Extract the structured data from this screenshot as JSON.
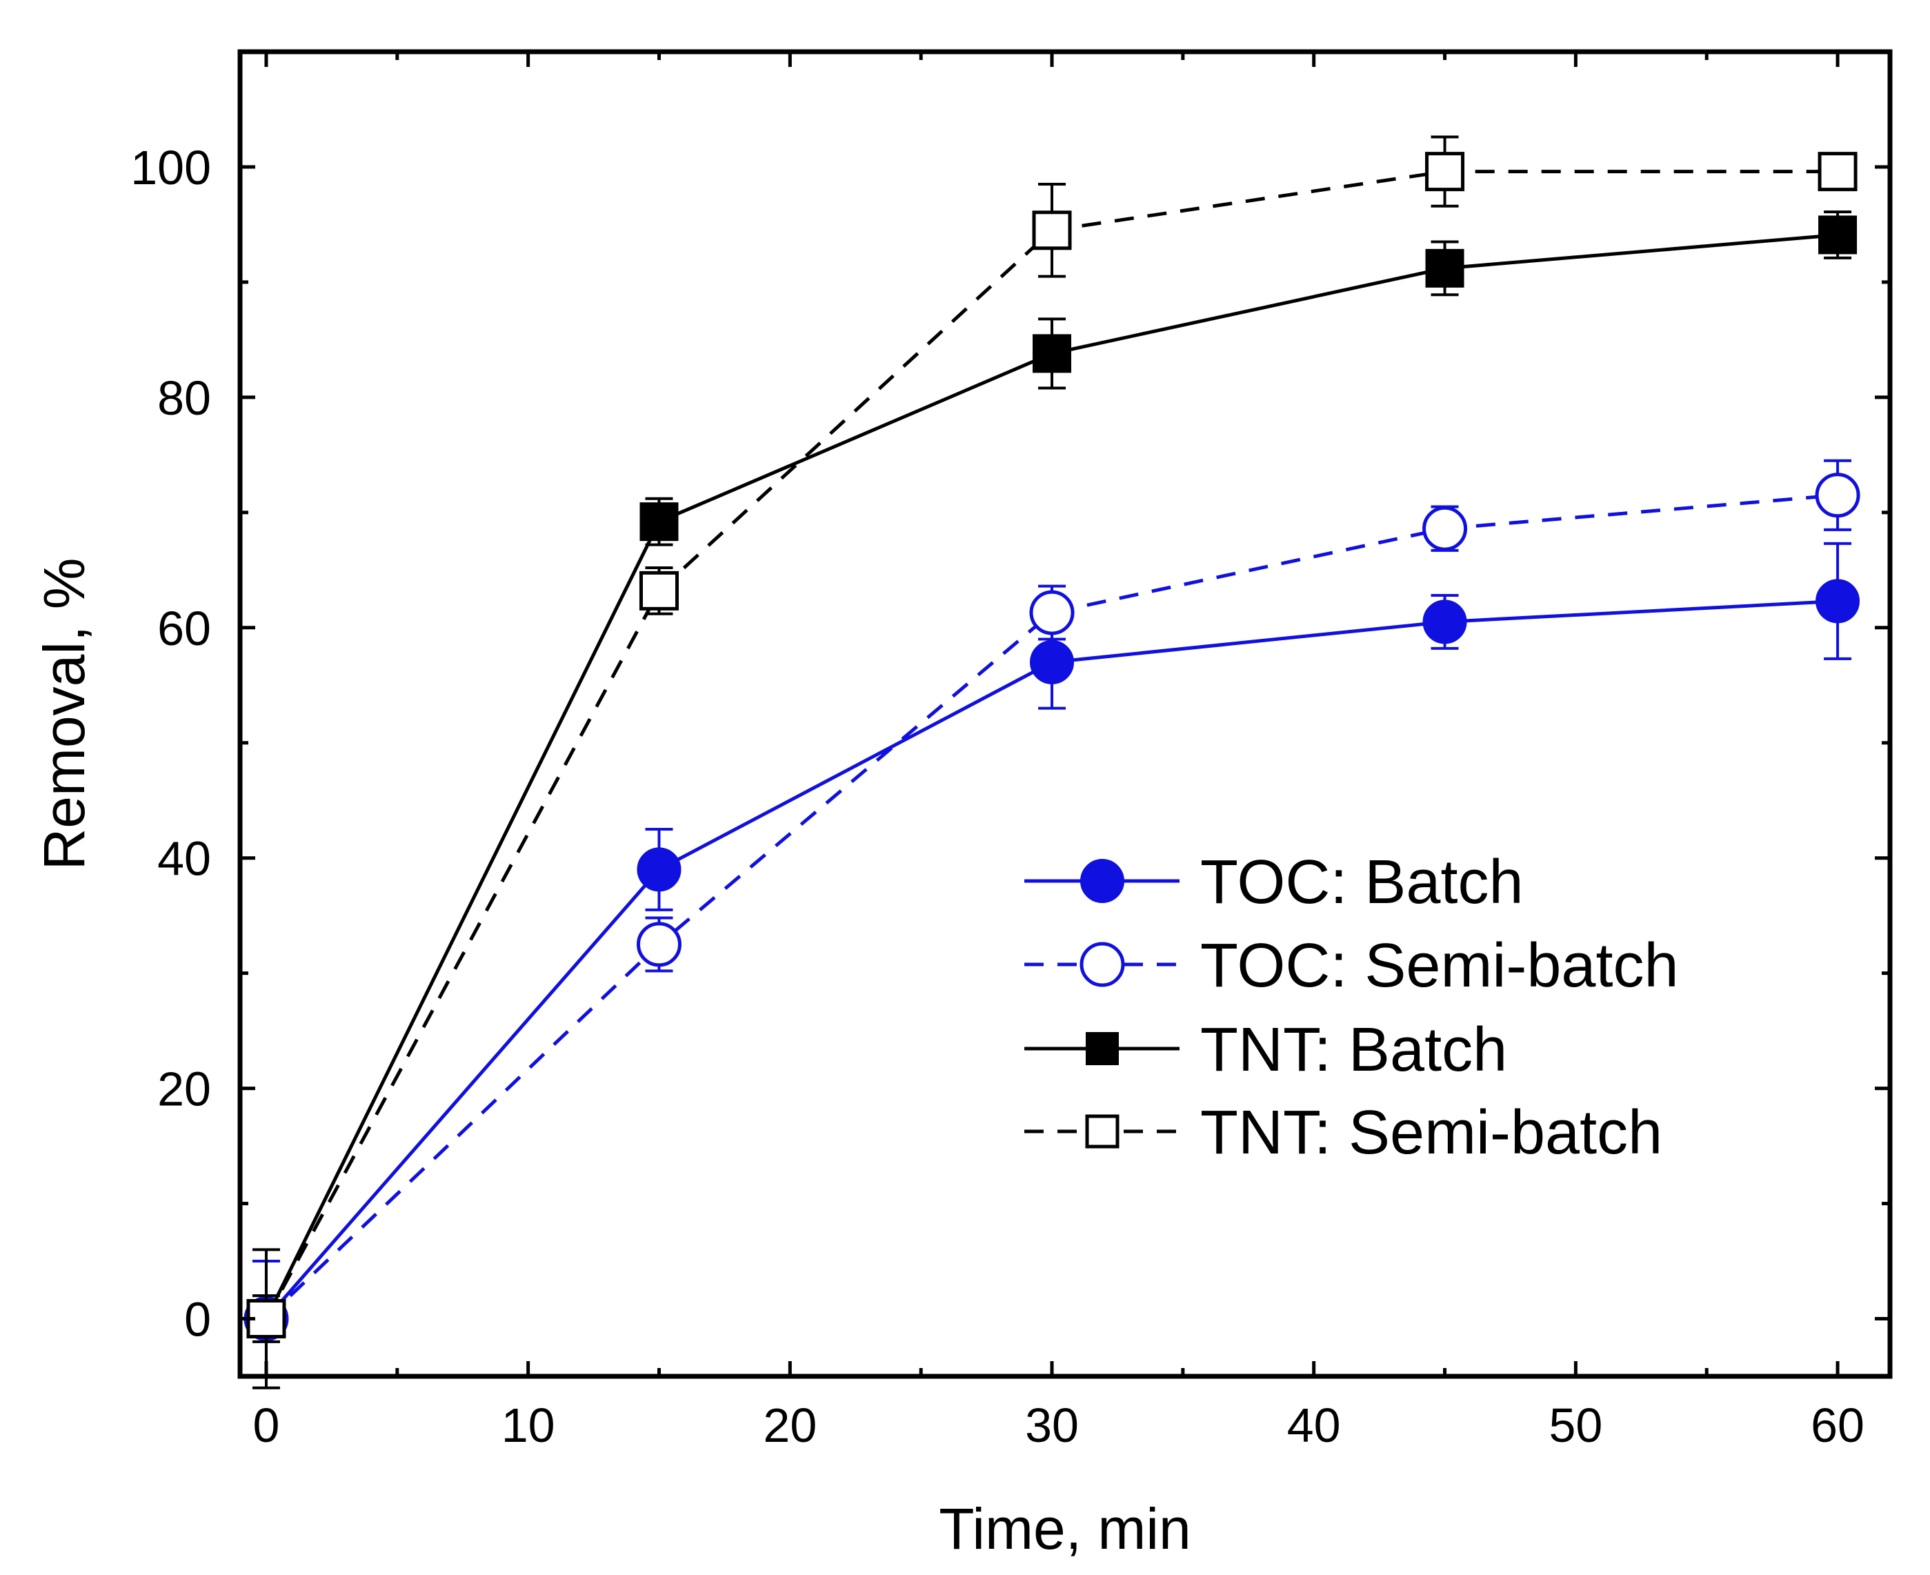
{
  "chart_data": {
    "type": "line",
    "title": "",
    "xlabel": "Time, min",
    "ylabel": "Removal, %",
    "xlim": [
      -1,
      62
    ],
    "ylim": [
      -5,
      110
    ],
    "x_ticks": [
      0,
      10,
      20,
      30,
      40,
      50,
      60
    ],
    "y_ticks": [
      0,
      20,
      40,
      60,
      80,
      100
    ],
    "grid": false,
    "legend_position": "center-right",
    "series": [
      {
        "name": "TOC: Batch",
        "color": "#1010e0",
        "line_style": "solid",
        "marker": "filled-circle",
        "x": [
          0,
          15,
          30,
          45,
          60
        ],
        "y": [
          0,
          39,
          57,
          60.5,
          62.3
        ],
        "error": [
          5,
          3.5,
          4,
          2.3,
          5
        ]
      },
      {
        "name": "TOC: Semi-batch",
        "color": "#1010e0",
        "line_style": "dashed",
        "marker": "open-circle",
        "x": [
          0,
          15,
          30,
          45,
          60
        ],
        "y": [
          0,
          32.5,
          61.3,
          68.6,
          71.5
        ],
        "error": [
          5,
          2.3,
          2.3,
          1.9,
          3
        ]
      },
      {
        "name": "TNT: Batch",
        "color": "#000000",
        "line_style": "solid",
        "marker": "filled-square",
        "x": [
          0,
          15,
          30,
          45,
          60
        ],
        "y": [
          0,
          69.2,
          83.8,
          91.2,
          94.1
        ],
        "error": [
          2,
          2,
          3,
          2.3,
          2
        ]
      },
      {
        "name": "TNT: Semi-batch",
        "color": "#000000",
        "line_style": "dashed",
        "marker": "open-square",
        "x": [
          0,
          15,
          30,
          45,
          60
        ],
        "y": [
          0,
          63.2,
          94.5,
          99.6,
          99.6
        ],
        "error": [
          6,
          2,
          4,
          3,
          1.5
        ]
      }
    ]
  }
}
